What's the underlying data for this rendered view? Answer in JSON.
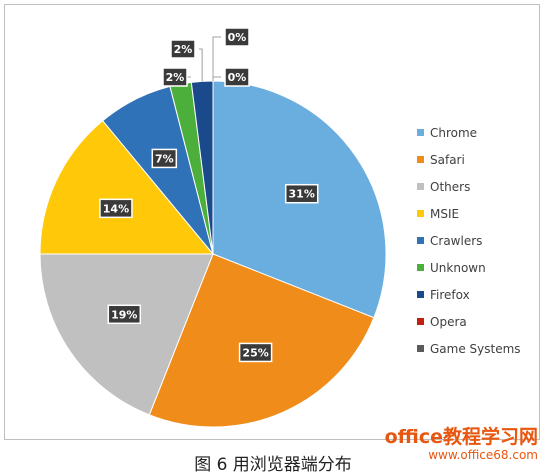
{
  "chart_data": {
    "type": "pie",
    "title": "",
    "legend_position": "right",
    "slices": [
      {
        "name": "Chrome",
        "value": 31,
        "label": "31%",
        "color": "#6aaee0"
      },
      {
        "name": "Safari",
        "value": 25,
        "label": "25%",
        "color": "#f08c1a"
      },
      {
        "name": "Others",
        "value": 19,
        "label": "19%",
        "color": "#c0c0c0"
      },
      {
        "name": "MSIE",
        "value": 14,
        "label": "14%",
        "color": "#ffc90a"
      },
      {
        "name": "Crawlers",
        "value": 7,
        "label": "7%",
        "color": "#2f72b8"
      },
      {
        "name": "Unknown",
        "value": 2,
        "label": "2%",
        "color": "#4caf3c"
      },
      {
        "name": "Firefox",
        "value": 2,
        "label": "2%",
        "color": "#1a4a8c"
      },
      {
        "name": "Opera",
        "value": 0,
        "label": "0%",
        "color": "#c0200e"
      },
      {
        "name": "Game Systems",
        "value": 0,
        "label": "0%",
        "color": "#5a5a5a"
      }
    ]
  },
  "caption": "图 6  用浏览器端分布",
  "watermark": {
    "main": "office教程学习网",
    "url": "www.office68.com"
  }
}
